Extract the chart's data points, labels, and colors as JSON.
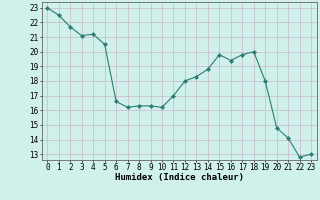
{
  "xlabel": "Humidex (Indice chaleur)",
  "x": [
    0,
    1,
    2,
    3,
    4,
    5,
    6,
    7,
    8,
    9,
    10,
    11,
    12,
    13,
    14,
    15,
    16,
    17,
    18,
    19,
    20,
    21,
    22,
    23
  ],
  "y": [
    23.0,
    22.5,
    21.7,
    21.1,
    21.2,
    20.5,
    16.6,
    16.2,
    16.3,
    16.3,
    16.2,
    17.0,
    18.0,
    18.3,
    18.8,
    19.8,
    19.4,
    19.8,
    20.0,
    18.0,
    14.8,
    14.1,
    12.8,
    13.0
  ],
  "line_color": "#2e7d6e",
  "marker": "D",
  "marker_size": 2.0,
  "background_color": "#cff0eb",
  "grid_color": "#c8b8c8",
  "ylim_min": 13,
  "ylim_max": 23,
  "yticks": [
    13,
    14,
    15,
    16,
    17,
    18,
    19,
    20,
    21,
    22,
    23
  ],
  "xticks": [
    0,
    1,
    2,
    3,
    4,
    5,
    6,
    7,
    8,
    9,
    10,
    11,
    12,
    13,
    14,
    15,
    16,
    17,
    18,
    19,
    20,
    21,
    22,
    23
  ],
  "tick_fontsize": 5.5,
  "label_fontsize": 6.5
}
